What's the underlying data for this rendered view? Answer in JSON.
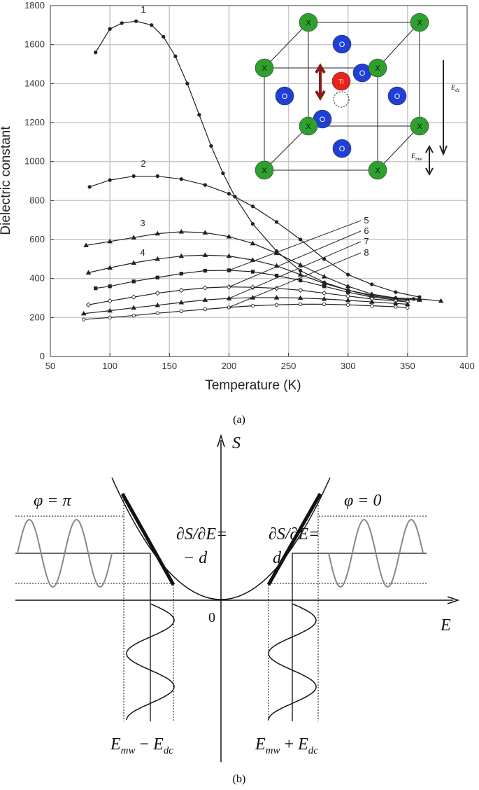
{
  "chart_data": {
    "type": "line",
    "xlabel": "Temperature (K)",
    "ylabel": "Dielectric constant",
    "xlim": [
      50,
      400
    ],
    "xticks": [
      50,
      100,
      150,
      200,
      250,
      300,
      350,
      400
    ],
    "ylim": [
      0,
      1800
    ],
    "yticks": [
      0,
      200,
      400,
      600,
      800,
      1000,
      1200,
      1400,
      1600,
      1800
    ],
    "grid": true,
    "series": [
      {
        "name": "1",
        "color": "#222222",
        "marker": "circle",
        "x": [
          88,
          100,
          110,
          122,
          135,
          145,
          155,
          165,
          175,
          185,
          195,
          205,
          220,
          240,
          260,
          280,
          300,
          320,
          340,
          355
        ],
        "values": [
          1560,
          1680,
          1710,
          1720,
          1700,
          1640,
          1540,
          1400,
          1240,
          1080,
          940,
          820,
          680,
          540,
          440,
          380,
          340,
          315,
          300,
          295
        ]
      },
      {
        "name": "2",
        "color": "#222222",
        "marker": "circle",
        "x": [
          83,
          100,
          120,
          140,
          160,
          180,
          200,
          220,
          240,
          260,
          280,
          300,
          320,
          340,
          360
        ],
        "values": [
          870,
          905,
          925,
          925,
          910,
          880,
          835,
          770,
          690,
          600,
          500,
          420,
          370,
          330,
          305
        ]
      },
      {
        "name": "3",
        "color": "#222222",
        "marker": "triangle",
        "x": [
          80,
          100,
          120,
          140,
          160,
          180,
          200,
          220,
          240,
          260,
          280,
          300,
          320,
          340,
          360,
          378
        ],
        "values": [
          570,
          590,
          610,
          630,
          640,
          635,
          615,
          580,
          530,
          470,
          410,
          360,
          320,
          300,
          295,
          285
        ]
      },
      {
        "name": "4",
        "color": "#222222",
        "marker": "triangle",
        "x": [
          82,
          100,
          120,
          140,
          160,
          180,
          200,
          220,
          240,
          260,
          280,
          300,
          320,
          340,
          360
        ],
        "values": [
          430,
          455,
          480,
          500,
          515,
          520,
          515,
          495,
          465,
          420,
          375,
          340,
          310,
          295,
          290
        ]
      },
      {
        "name": "5",
        "color": "#222222",
        "marker": "square",
        "x": [
          88,
          100,
          120,
          140,
          160,
          180,
          200,
          220,
          240,
          260,
          280,
          300,
          320,
          340,
          350
        ],
        "values": [
          350,
          360,
          385,
          405,
          425,
          440,
          442,
          435,
          415,
          390,
          360,
          330,
          305,
          290,
          285
        ]
      },
      {
        "name": "6",
        "color": "#222222",
        "marker": "open-diamond",
        "x": [
          82,
          100,
          120,
          140,
          160,
          180,
          200,
          220,
          240,
          260,
          280,
          300,
          320,
          340,
          350
        ],
        "values": [
          265,
          285,
          305,
          325,
          340,
          352,
          357,
          355,
          350,
          340,
          325,
          310,
          295,
          285,
          280
        ]
      },
      {
        "name": "7",
        "color": "#222222",
        "marker": "triangle",
        "x": [
          78,
          100,
          120,
          140,
          160,
          180,
          200,
          220,
          240,
          260,
          280,
          300,
          320,
          340,
          350
        ],
        "values": [
          220,
          235,
          250,
          263,
          277,
          290,
          298,
          302,
          302,
          300,
          295,
          288,
          280,
          272,
          268
        ]
      },
      {
        "name": "8",
        "color": "#222222",
        "marker": "open-circle",
        "x": [
          78,
          100,
          120,
          140,
          160,
          180,
          200,
          220,
          240,
          260,
          280,
          300,
          320,
          340,
          350
        ],
        "values": [
          190,
          200,
          210,
          222,
          232,
          242,
          252,
          260,
          265,
          268,
          268,
          265,
          260,
          255,
          250
        ]
      }
    ]
  },
  "inset": {
    "atom_labels": [
      "X",
      "O",
      "Ti"
    ],
    "field_labels": [
      {
        "main": "E",
        "sub": "dc"
      },
      {
        "main": "E",
        "sub": "mw"
      }
    ]
  },
  "diagram": {
    "y_axis": "S",
    "x_axis": "E",
    "origin": "0",
    "phase_left": "φ = π",
    "phase_right": "φ = 0",
    "slope_left": [
      "∂S/∂E=",
      "− d"
    ],
    "slope_right": [
      "∂S/∂E=",
      "d"
    ],
    "bottom_left": {
      "main1": "E",
      "sub1": "mw",
      "op": " − ",
      "main2": "E",
      "sub2": "dc"
    },
    "bottom_right": {
      "main1": "E",
      "sub1": "mw",
      "op": " + ",
      "main2": "E",
      "sub2": "dc"
    }
  },
  "captions": [
    "(a)",
    "(b)"
  ]
}
